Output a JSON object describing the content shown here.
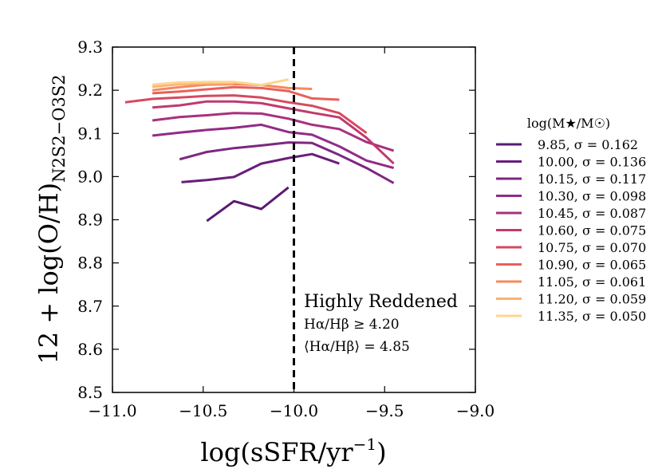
{
  "chart_data": {
    "type": "line",
    "xlabel": "log(sSFR/yr",
    "xlabel_sup": "−1",
    "xlabel_tail": ")",
    "ylabel_main": "12 + log(O/H)",
    "ylabel_sub": "N2S2−O3S2",
    "xlim": [
      -11.0,
      -9.0
    ],
    "ylim": [
      8.5,
      9.3
    ],
    "xticks": [
      -11.0,
      -10.5,
      -10.0,
      -9.5,
      -9.0
    ],
    "xtick_labels": [
      "−11.0",
      "−10.5",
      "−10.0",
      "−9.5",
      "−9.0"
    ],
    "yticks": [
      8.5,
      8.6,
      8.7,
      8.8,
      8.9,
      9.0,
      9.1,
      9.2,
      9.3
    ],
    "ytick_labels": [
      "8.5",
      "8.6",
      "8.7",
      "8.8",
      "8.9",
      "9.0",
      "9.1",
      "9.2",
      "9.3"
    ],
    "vline_x": -10.0,
    "annotation": {
      "title": "Highly Reddened",
      "line1": "Hα/Hβ ≥ 4.20",
      "line2": "⟨Hα/Hβ⟩ = 4.85"
    },
    "legend_title": "log(M★/M☉)",
    "series": [
      {
        "name": "9.85,  σ = 0.162",
        "color": "#5a1a74",
        "x": [
          -10.48,
          -10.33,
          -10.18,
          -10.03
        ],
        "y": [
          8.897,
          8.943,
          8.925,
          8.975
        ]
      },
      {
        "name": "10.00, σ = 0.136",
        "color": "#6a1e7a",
        "x": [
          -10.62,
          -10.48,
          -10.33,
          -10.18,
          -10.03,
          -9.9,
          -9.75
        ],
        "y": [
          8.987,
          8.992,
          8.999,
          9.03,
          9.043,
          9.052,
          9.03
        ]
      },
      {
        "name": "10.15, σ = 0.117",
        "color": "#7e2682",
        "x": [
          -10.63,
          -10.48,
          -10.33,
          -10.18,
          -10.03,
          -9.9,
          -9.75,
          -9.6,
          -9.45
        ],
        "y": [
          9.04,
          9.057,
          9.066,
          9.072,
          9.079,
          9.078,
          9.05,
          9.02,
          8.985
        ]
      },
      {
        "name": "10.30, σ = 0.098",
        "color": "#922b87",
        "x": [
          -10.78,
          -10.63,
          -10.48,
          -10.33,
          -10.18,
          -10.03,
          -9.9,
          -9.75,
          -9.6,
          -9.45
        ],
        "y": [
          9.095,
          9.102,
          9.108,
          9.113,
          9.12,
          9.103,
          9.097,
          9.07,
          9.037,
          9.02
        ]
      },
      {
        "name": "10.45, σ = 0.087",
        "color": "#a8317f",
        "x": [
          -10.78,
          -10.63,
          -10.48,
          -10.33,
          -10.18,
          -10.03,
          -9.9,
          -9.75,
          -9.6,
          -9.45
        ],
        "y": [
          9.13,
          9.138,
          9.142,
          9.147,
          9.146,
          9.134,
          9.12,
          9.11,
          9.08,
          9.06
        ]
      },
      {
        "name": "10.60, σ = 0.075",
        "color": "#c03a6f",
        "x": [
          -10.78,
          -10.63,
          -10.48,
          -10.33,
          -10.18,
          -10.03,
          -9.9,
          -9.75,
          -9.6,
          -9.45
        ],
        "y": [
          9.16,
          9.165,
          9.174,
          9.174,
          9.17,
          9.158,
          9.148,
          9.137,
          9.09,
          9.03
        ]
      },
      {
        "name": "10.75, σ = 0.070",
        "color": "#d64a5f",
        "x": [
          -10.93,
          -10.78,
          -10.63,
          -10.48,
          -10.33,
          -10.18,
          -10.03,
          -9.9,
          -9.75,
          -9.6
        ],
        "y": [
          9.172,
          9.18,
          9.183,
          9.187,
          9.188,
          9.183,
          9.172,
          9.164,
          9.147,
          9.101
        ]
      },
      {
        "name": "10.90, σ = 0.065",
        "color": "#e8615a",
        "x": [
          -10.78,
          -10.63,
          -10.48,
          -10.33,
          -10.18,
          -10.03,
          -9.9,
          -9.75
        ],
        "y": [
          9.193,
          9.197,
          9.202,
          9.207,
          9.205,
          9.198,
          9.181,
          9.178
        ]
      },
      {
        "name": "11.05, σ = 0.061",
        "color": "#f5895f",
        "x": [
          -10.78,
          -10.63,
          -10.48,
          -10.33,
          -10.18,
          -10.03,
          -9.9
        ],
        "y": [
          9.2,
          9.207,
          9.213,
          9.214,
          9.212,
          9.205,
          9.203
        ]
      },
      {
        "name": "11.20, σ = 0.059",
        "color": "#f9b270",
        "x": [
          -10.78,
          -10.63,
          -10.48,
          -10.33
        ],
        "y": [
          9.208,
          9.214,
          9.216,
          9.216
        ]
      },
      {
        "name": "11.35, σ = 0.050",
        "color": "#fcd68f",
        "x": [
          -10.78,
          -10.63,
          -10.48,
          -10.33,
          -10.18,
          -10.03
        ],
        "y": [
          9.213,
          9.218,
          9.219,
          9.219,
          9.212,
          9.225
        ]
      }
    ]
  }
}
